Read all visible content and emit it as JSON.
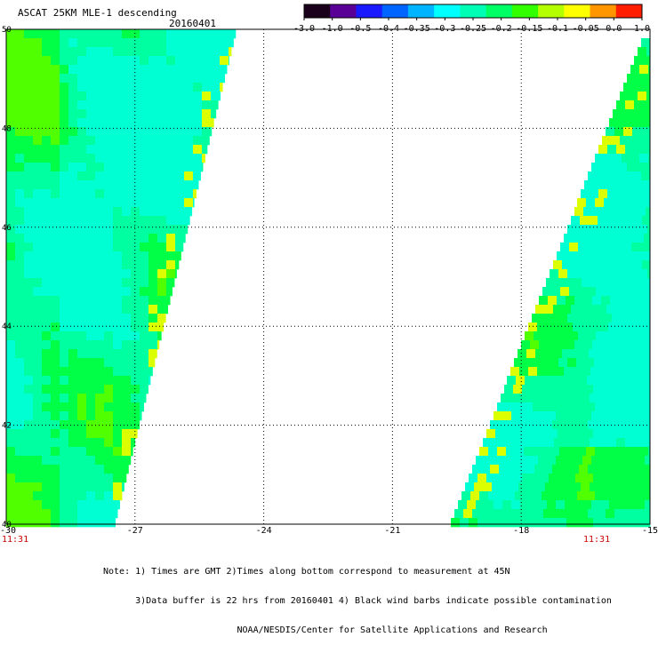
{
  "header": {
    "title": "ASCAT 25KM MLE-1 descending",
    "date": "20160401"
  },
  "colorbar": {
    "labels": [
      "-3.0",
      "-1.0",
      "-0.5",
      "-0.4",
      "-0.35",
      "-0.3",
      "-0.25",
      "-0.2",
      "-0.15",
      "-0.1",
      "-0.05",
      "0.0",
      "1.0"
    ],
    "stops": [
      "#1a001a",
      "#5a0096",
      "#1a1aff",
      "#0064ff",
      "#00b4ff",
      "#00ffff",
      "#00ffb4",
      "#00ff64",
      "#32ff00",
      "#b4ff00",
      "#ffff00",
      "#ff9600",
      "#ff1e00"
    ]
  },
  "map": {
    "lat_labels": [
      "50",
      "48",
      "46",
      "44",
      "42",
      "40"
    ],
    "lon_labels": [
      "-30",
      "-27",
      "-24",
      "-21",
      "-18",
      "-15"
    ],
    "time_left": "11:31",
    "time_right": "11:31",
    "palette": {
      "cyan": "#00ffd2",
      "teal": "#00ffa0",
      "green": "#00ff46",
      "lime": "#50ff00",
      "yellow": "#dcff00",
      "orange": "#ffa000",
      "blue": "#00b4ff"
    }
  },
  "notes": [
    "Note: 1) Times are GMT 2)Times along bottom correspond to measurement at 45N",
    "      3)Data buffer is 22 hrs from 20160401 4) Black wind barbs indicate possible contamination",
    "                         NOAA/NESDIS/Center for Satellite Applications and Research"
  ]
}
